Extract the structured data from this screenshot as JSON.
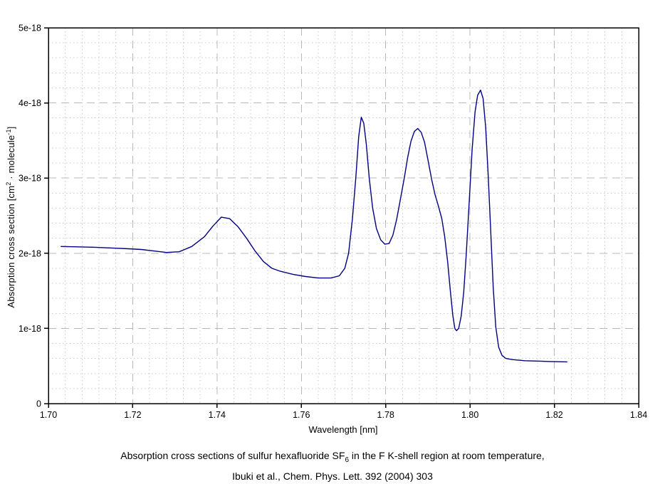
{
  "chart_data": {
    "type": "line",
    "title": "",
    "xlabel": "Wavelength [nm]",
    "ylabel": "Absorption cross section [cm2 · molecule-1]",
    "ylabel_parts": {
      "pre": "Absorption cross section [cm",
      "sup1": "2",
      "mid": " · molecule",
      "sup2": "-1",
      "post": "]"
    },
    "xlim": [
      1.7,
      1.84
    ],
    "ylim_e18": [
      0,
      5
    ],
    "x_major_step": 0.02,
    "x_minor_step": 0.004,
    "y_major_step_e18": 1,
    "y_minor_step_e18": 0.2,
    "x_tick_labels": [
      "1.70",
      "1.72",
      "1.74",
      "1.76",
      "1.78",
      "1.80",
      "1.82",
      "1.84"
    ],
    "y_tick_labels": [
      "0",
      "1e-18",
      "2e-18",
      "3e-18",
      "4e-18",
      "5e-18"
    ],
    "grid": {
      "major": "dashed",
      "minor": "dotted"
    },
    "legend": "none",
    "y_unit": "1e-18 cm2 / molecule",
    "series": [
      {
        "name": "SF6 F K-shell absorption cross section",
        "color": "#000080",
        "points": [
          [
            1.703,
            2.09
          ],
          [
            1.707,
            2.085
          ],
          [
            1.711,
            2.08
          ],
          [
            1.715,
            2.07
          ],
          [
            1.719,
            2.06
          ],
          [
            1.722,
            2.05
          ],
          [
            1.725,
            2.03
          ],
          [
            1.728,
            2.01
          ],
          [
            1.731,
            2.02
          ],
          [
            1.734,
            2.09
          ],
          [
            1.737,
            2.22
          ],
          [
            1.739,
            2.36
          ],
          [
            1.741,
            2.48
          ],
          [
            1.743,
            2.46
          ],
          [
            1.745,
            2.35
          ],
          [
            1.747,
            2.2
          ],
          [
            1.749,
            2.03
          ],
          [
            1.751,
            1.89
          ],
          [
            1.753,
            1.8
          ],
          [
            1.755,
            1.76
          ],
          [
            1.758,
            1.72
          ],
          [
            1.761,
            1.69
          ],
          [
            1.764,
            1.67
          ],
          [
            1.767,
            1.67
          ],
          [
            1.769,
            1.7
          ],
          [
            1.7703,
            1.8
          ],
          [
            1.7712,
            2.0
          ],
          [
            1.7721,
            2.45
          ],
          [
            1.7729,
            3.0
          ],
          [
            1.7736,
            3.55
          ],
          [
            1.7742,
            3.81
          ],
          [
            1.7748,
            3.73
          ],
          [
            1.7754,
            3.45
          ],
          [
            1.7761,
            3.0
          ],
          [
            1.7769,
            2.6
          ],
          [
            1.7778,
            2.33
          ],
          [
            1.7788,
            2.18
          ],
          [
            1.7798,
            2.12
          ],
          [
            1.7808,
            2.13
          ],
          [
            1.7817,
            2.24
          ],
          [
            1.7826,
            2.45
          ],
          [
            1.7835,
            2.72
          ],
          [
            1.7844,
            3.0
          ],
          [
            1.7852,
            3.27
          ],
          [
            1.786,
            3.49
          ],
          [
            1.7868,
            3.62
          ],
          [
            1.7876,
            3.66
          ],
          [
            1.7884,
            3.61
          ],
          [
            1.7892,
            3.48
          ],
          [
            1.79,
            3.25
          ],
          [
            1.7909,
            2.98
          ],
          [
            1.7917,
            2.78
          ],
          [
            1.7925,
            2.63
          ],
          [
            1.7933,
            2.46
          ],
          [
            1.794,
            2.22
          ],
          [
            1.7947,
            1.88
          ],
          [
            1.7953,
            1.52
          ],
          [
            1.7959,
            1.18
          ],
          [
            1.7964,
            1.0
          ],
          [
            1.7968,
            0.97
          ],
          [
            1.7973,
            1.0
          ],
          [
            1.7979,
            1.16
          ],
          [
            1.7985,
            1.48
          ],
          [
            1.7991,
            1.98
          ],
          [
            1.7998,
            2.68
          ],
          [
            1.8005,
            3.38
          ],
          [
            1.8012,
            3.88
          ],
          [
            1.8018,
            4.1
          ],
          [
            1.8025,
            4.17
          ],
          [
            1.8031,
            4.06
          ],
          [
            1.8037,
            3.68
          ],
          [
            1.8043,
            3.05
          ],
          [
            1.8049,
            2.3
          ],
          [
            1.8055,
            1.55
          ],
          [
            1.8061,
            1.02
          ],
          [
            1.8068,
            0.75
          ],
          [
            1.8076,
            0.64
          ],
          [
            1.8085,
            0.6
          ],
          [
            1.81,
            0.585
          ],
          [
            1.813,
            0.57
          ],
          [
            1.816,
            0.565
          ],
          [
            1.819,
            0.56
          ],
          [
            1.823,
            0.555
          ]
        ]
      }
    ],
    "features": {
      "peaks_nm_vs_1e-18": [
        [
          1.741,
          2.48
        ],
        [
          1.774,
          3.81
        ],
        [
          1.788,
          3.66
        ],
        [
          1.803,
          4.17
        ]
      ],
      "valleys_nm_vs_1e-18": [
        [
          1.728,
          2.01
        ],
        [
          1.765,
          1.67
        ],
        [
          1.78,
          2.12
        ],
        [
          1.797,
          0.97
        ]
      ],
      "left_plateau_value_1e-18": 2.09,
      "right_tail_value_1e-18": 0.555
    }
  },
  "caption": {
    "line1_pre": "Absorption cross sections of sulfur hexafluoride SF",
    "line1_sub": "6",
    "line1_post": " in the F K-shell region at room temperature,",
    "line2": "Ibuki et al., Chem. Phys. Lett. 392 (2004) 303"
  },
  "colors": {
    "background": "#ffffff",
    "line": "#000080",
    "frame": "#000000",
    "major_grid": "#b8b8b8",
    "minor_grid": "#cbcbcb",
    "text": "#000000"
  }
}
